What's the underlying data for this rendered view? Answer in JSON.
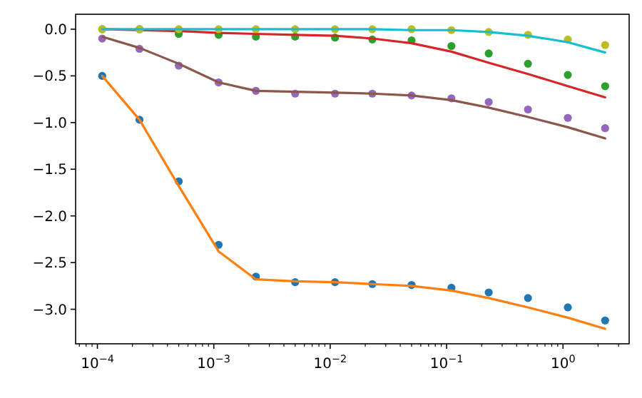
{
  "chart_data": {
    "type": "scatter",
    "x": [
      0.00011,
      0.00023,
      0.0005,
      0.0011,
      0.0023,
      0.005,
      0.011,
      0.023,
      0.05,
      0.11,
      0.23,
      0.5,
      1.1,
      2.3
    ],
    "log": "x",
    "grid": false,
    "xlim": [
      6.5e-05,
      3.7
    ],
    "ylim": [
      -3.37,
      0.16
    ],
    "xticks": [
      {
        "value": 0.0001,
        "label": "10$^{−4}$"
      },
      {
        "value": 0.001,
        "label": "10$^{−3}$"
      },
      {
        "value": 0.01,
        "label": "10$^{−2}$"
      },
      {
        "value": 0.1,
        "label": "10$^{−1}$"
      },
      {
        "value": 1,
        "label": "10$^{0}$"
      },
      {
        "value": 7e-05,
        "label": null
      },
      {
        "value": 8e-05,
        "label": null
      },
      {
        "value": 9e-05,
        "label": null
      },
      {
        "value": 0.0002,
        "label": null
      },
      {
        "value": 0.0003,
        "label": null
      },
      {
        "value": 0.0004,
        "label": null
      },
      {
        "value": 0.0005,
        "label": null
      },
      {
        "value": 0.0006,
        "label": null
      },
      {
        "value": 0.0007,
        "label": null
      },
      {
        "value": 0.0008,
        "label": null
      },
      {
        "value": 0.0009,
        "label": null
      },
      {
        "value": 0.002,
        "label": null
      },
      {
        "value": 0.003,
        "label": null
      },
      {
        "value": 0.004,
        "label": null
      },
      {
        "value": 0.005,
        "label": null
      },
      {
        "value": 0.006,
        "label": null
      },
      {
        "value": 0.007,
        "label": null
      },
      {
        "value": 0.008,
        "label": null
      },
      {
        "value": 0.009,
        "label": null
      },
      {
        "value": 0.02,
        "label": null
      },
      {
        "value": 0.03,
        "label": null
      },
      {
        "value": 0.04,
        "label": null
      },
      {
        "value": 0.05,
        "label": null
      },
      {
        "value": 0.06,
        "label": null
      },
      {
        "value": 0.07,
        "label": null
      },
      {
        "value": 0.08,
        "label": null
      },
      {
        "value": 0.09,
        "label": null
      },
      {
        "value": 0.2,
        "label": null
      },
      {
        "value": 0.3,
        "label": null
      },
      {
        "value": 0.4,
        "label": null
      },
      {
        "value": 0.5,
        "label": null
      },
      {
        "value": 0.6,
        "label": null
      },
      {
        "value": 0.7,
        "label": null
      },
      {
        "value": 0.8,
        "label": null
      },
      {
        "value": 0.9,
        "label": null
      },
      {
        "value": 2,
        "label": null
      },
      {
        "value": 3,
        "label": null
      }
    ],
    "yticks": [
      {
        "value": 0,
        "label": "0.0"
      },
      {
        "value": -0.5,
        "label": "−0.5"
      },
      {
        "value": -1,
        "label": "−1.0"
      },
      {
        "value": -1.5,
        "label": "−1.5"
      },
      {
        "value": -2,
        "label": "−2.0"
      },
      {
        "value": -2.5,
        "label": "−2.5"
      },
      {
        "value": -3,
        "label": "−3.0"
      }
    ],
    "series": [
      {
        "marker": "circle",
        "color": "#1f77b4",
        "values": [
          -0.5,
          -0.97,
          -1.63,
          -2.31,
          -2.65,
          -2.71,
          -2.71,
          -2.73,
          -2.74,
          -2.77,
          -2.82,
          -2.88,
          -2.98,
          -3.12
        ]
      },
      {
        "type": "line",
        "marker": "none",
        "color": "#ff7f0e",
        "values": [
          -0.5,
          -0.97,
          -1.68,
          -2.38,
          -2.68,
          -2.7,
          -2.71,
          -2.73,
          -2.75,
          -2.8,
          -2.88,
          -2.98,
          -3.09,
          -3.21
        ]
      },
      {
        "marker": "circle",
        "color": "#2ca02c",
        "values": [
          0,
          0,
          -0.05,
          -0.06,
          -0.08,
          -0.08,
          -0.09,
          -0.11,
          -0.12,
          -0.18,
          -0.26,
          -0.37,
          -0.49,
          -0.61
        ]
      },
      {
        "type": "line",
        "marker": "none",
        "color": "#d62728",
        "values": [
          0,
          -0.01,
          -0.02,
          -0.04,
          -0.05,
          -0.06,
          -0.07,
          -0.1,
          -0.15,
          -0.24,
          -0.36,
          -0.48,
          -0.61,
          -0.73
        ]
      },
      {
        "marker": "circle",
        "color": "#9467bd",
        "values": [
          -0.1,
          -0.21,
          -0.39,
          -0.57,
          -0.66,
          -0.69,
          -0.69,
          -0.69,
          -0.71,
          -0.74,
          -0.78,
          -0.86,
          -0.95,
          -1.06
        ]
      },
      {
        "type": "line",
        "marker": "none",
        "color": "#8c564b",
        "values": [
          -0.08,
          -0.2,
          -0.37,
          -0.57,
          -0.66,
          -0.67,
          -0.68,
          -0.69,
          -0.71,
          -0.76,
          -0.84,
          -0.94,
          -1.05,
          -1.17
        ]
      },
      {
        "marker": "circle",
        "color": "#bcbd22",
        "values": [
          0,
          0,
          0,
          0,
          0,
          0,
          0,
          0,
          0,
          -0.01,
          -0.03,
          -0.06,
          -0.11,
          -0.17
        ]
      },
      {
        "type": "line",
        "marker": "none",
        "color": "#17becf",
        "values": [
          0,
          0,
          0,
          0,
          0,
          0,
          0,
          0,
          -0.01,
          -0.01,
          -0.03,
          -0.07,
          -0.14,
          -0.25
        ]
      }
    ]
  }
}
